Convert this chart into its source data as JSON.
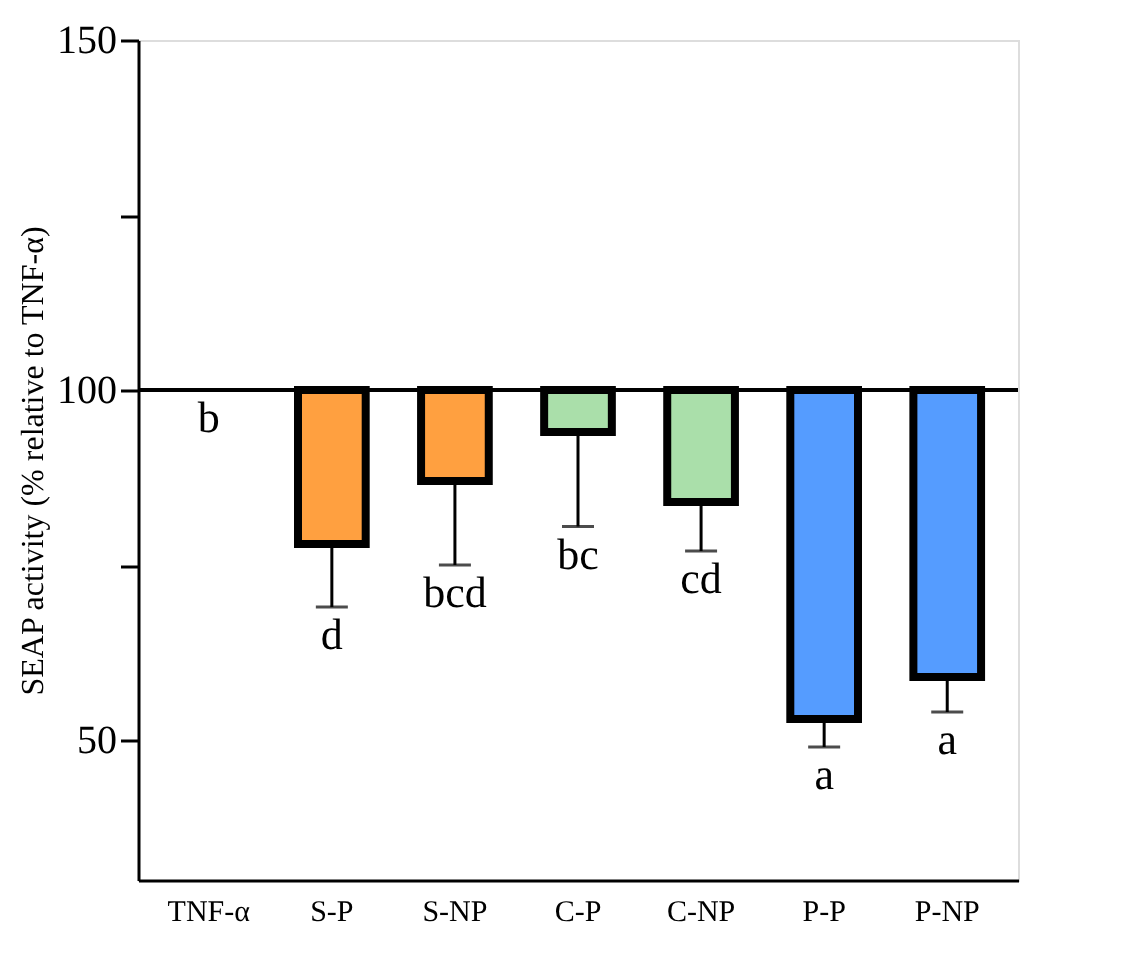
{
  "chart_data": {
    "type": "bar",
    "ylabel": "SEAP activity (% relative to TNF-α)",
    "categories": [
      "TNF-α",
      "S-P",
      "S-NP",
      "C-P",
      "C-NP",
      "P-P",
      "P-NP"
    ],
    "base": [
      null,
      100,
      100,
      100,
      100,
      100,
      100
    ],
    "values": [
      null,
      -22,
      -13,
      -6,
      -16,
      -47,
      -41
    ],
    "colors": [
      "#ffa040",
      "#ffa040",
      "#ffa040",
      "#aadfaa",
      "#aadfaa",
      "#559cff",
      "#559cff"
    ],
    "errors": [
      null,
      [
        69,
        78
      ],
      [
        75,
        87
      ],
      [
        80.5,
        94
      ],
      [
        77,
        84
      ],
      [
        49,
        53
      ],
      [
        54,
        59
      ]
    ],
    "ylim": [
      30,
      150
    ],
    "yticks": [
      50,
      {
        "value": 75,
        "label": null
      },
      100,
      {
        "value": 125,
        "label": null
      },
      150
    ],
    "ref_lines": [
      {
        "axis": "y",
        "value": 100
      }
    ],
    "annotations": [
      "b",
      "d",
      "bcd",
      "bc",
      "cd",
      "a",
      "a"
    ],
    "grid": false
  }
}
